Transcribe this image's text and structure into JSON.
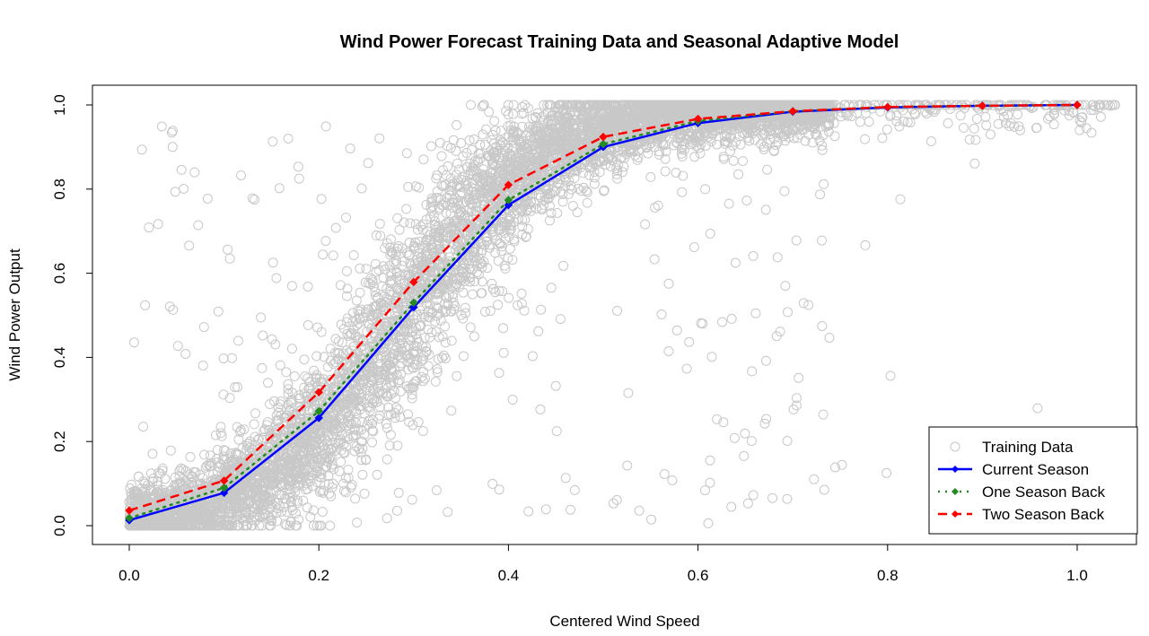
{
  "chart_data": {
    "type": "scatter",
    "title": "Wind Power Forecast Training Data and Seasonal Adaptive Model",
    "xlabel": "Centered Wind Speed",
    "ylabel": "Wind Power Output",
    "xlim": [
      0.0,
      1.0
    ],
    "ylim": [
      0.0,
      1.0
    ],
    "x_ticks": [
      "0.0",
      "0.2",
      "0.4",
      "0.6",
      "0.8",
      "1.0"
    ],
    "y_ticks": [
      "0.0",
      "0.2",
      "0.4",
      "0.6",
      "0.8",
      "1.0"
    ],
    "grid": false,
    "legend_position": "bottom-right",
    "series": [
      {
        "name": "Training Data",
        "kind": "points",
        "marker": "open-circle",
        "color": "#c8c8c8",
        "description_of_cloud": "dense cloud of several thousand points following an S-shaped curve from (0,0) to (1,1)"
      },
      {
        "name": "Current Season",
        "kind": "line",
        "line_style": "solid",
        "marker": "diamond",
        "color": "#0000ff",
        "x": [
          0.0,
          0.1,
          0.2,
          0.3,
          0.4,
          0.5,
          0.6,
          0.7,
          0.8,
          0.9,
          1.0
        ],
        "y": [
          0.013,
          0.078,
          0.256,
          0.519,
          0.762,
          0.9,
          0.957,
          0.984,
          0.994,
          0.998,
          1.0
        ]
      },
      {
        "name": "One Season Back",
        "kind": "line",
        "line_style": "dotted",
        "marker": "diamond",
        "color": "#228b22",
        "x": [
          0.0,
          0.1,
          0.2,
          0.3,
          0.4,
          0.5,
          0.6,
          0.7,
          0.8,
          0.9,
          1.0
        ],
        "y": [
          0.018,
          0.09,
          0.272,
          0.53,
          0.774,
          0.907,
          0.962,
          0.985,
          0.995,
          0.998,
          1.0
        ]
      },
      {
        "name": "Two Season Back",
        "kind": "line",
        "line_style": "dashed",
        "marker": "diamond",
        "color": "#ff0000",
        "x": [
          0.0,
          0.1,
          0.2,
          0.3,
          0.4,
          0.5,
          0.6,
          0.7,
          0.8,
          0.9,
          1.0
        ],
        "y": [
          0.036,
          0.107,
          0.317,
          0.579,
          0.81,
          0.924,
          0.967,
          0.985,
          0.995,
          0.998,
          1.0
        ]
      }
    ]
  }
}
